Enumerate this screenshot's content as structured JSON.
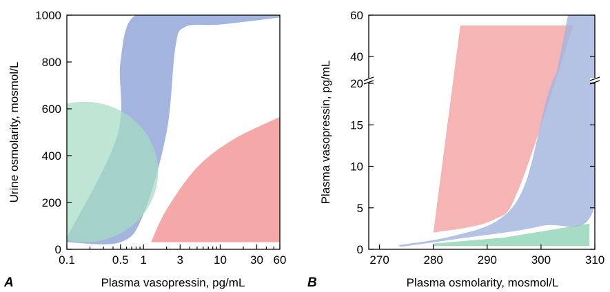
{
  "chart_data": [
    {
      "type": "area",
      "panel_label": "A",
      "xlabel": "Plasma vasopressin, pg/mL",
      "ylabel": "Urine osmolarity, mosmol/L",
      "x_scale": "log",
      "xlim": [
        0.1,
        60
      ],
      "ylim": [
        0,
        1000
      ],
      "x_ticks": [
        0.1,
        0.5,
        1,
        3,
        10,
        30,
        60
      ],
      "x_tick_labels": [
        "0.1",
        "0.5",
        "1",
        "3",
        "10",
        "30",
        "60"
      ],
      "y_ticks": [
        0,
        200,
        400,
        600,
        800,
        1000
      ],
      "y_tick_labels": [
        "0",
        "200",
        "400",
        "600",
        "800",
        "1000"
      ],
      "grid": false,
      "regions": [
        {
          "color": "#a3b4de",
          "upper": [
            [
              0.1,
              50
            ],
            [
              0.45,
              480
            ],
            [
              0.5,
              800
            ],
            [
              0.75,
              995
            ],
            [
              3,
              1000
            ],
            [
              60,
              1000
            ]
          ],
          "lower": [
            [
              0.1,
              30
            ],
            [
              0.5,
              30
            ],
            [
              1,
              150
            ],
            [
              2,
              500
            ],
            [
              2.6,
              860
            ],
            [
              3.5,
              950
            ],
            [
              10,
              960
            ],
            [
              60,
              990
            ]
          ]
        },
        {
          "color": "#a6dcc4",
          "shape": "ellipse",
          "center": [
            0.17,
            330
          ],
          "x_extent": [
            0.1,
            1.55
          ],
          "y_extent": [
            30,
            630
          ]
        },
        {
          "color": "#f5a8a8",
          "boundary": [
            [
              1.25,
              30
            ],
            [
              2,
              170
            ],
            [
              5,
              350
            ],
            [
              15,
              470
            ],
            [
              60,
              565
            ],
            [
              60,
              30
            ]
          ]
        }
      ]
    },
    {
      "type": "area",
      "panel_label": "B",
      "xlabel": "Plasma osmolarity, mosmol/L",
      "ylabel": "Plasma vasopressin, pg/mL",
      "xlim": [
        268,
        310
      ],
      "ylim": [
        0,
        60
      ],
      "y_axis_break": [
        20,
        30
      ],
      "x_ticks": [
        270,
        280,
        290,
        300,
        310
      ],
      "x_tick_labels": [
        "270",
        "280",
        "290",
        "300",
        "310"
      ],
      "y_ticks": [
        0,
        5,
        10,
        15,
        20,
        40,
        60
      ],
      "y_tick_labels": [
        "0",
        "5",
        "10",
        "15",
        "20",
        "40",
        "60"
      ],
      "grid": false,
      "regions": [
        {
          "color": "#a6dcc4",
          "boundary": [
            [
              280,
              0.4
            ],
            [
              309,
              0.4
            ],
            [
              309,
              3.1
            ],
            [
              293,
              1.4
            ],
            [
              280,
              0.7
            ]
          ]
        },
        {
          "color": "#f5a8a8",
          "opacity": 0.85,
          "boundary": [
            [
              280,
              2.0
            ],
            [
              285,
              55
            ],
            [
              306,
              55
            ],
            [
              296,
              7.5
            ],
            [
              291,
              3.5
            ],
            [
              280,
              2.0
            ]
          ]
        },
        {
          "color": "#a3b4de",
          "opacity": 0.82,
          "boundary": [
            [
              273.5,
              0.5
            ],
            [
              283,
              1.5
            ],
            [
              292,
              3.5
            ],
            [
              297,
              7.8
            ],
            [
              301,
              18
            ],
            [
              303,
              33
            ],
            [
              305,
              60
            ],
            [
              310,
              60
            ],
            [
              310,
              5.3
            ],
            [
              300,
              2.8
            ],
            [
              285,
              1.3
            ],
            [
              274,
              0.3
            ]
          ]
        }
      ]
    }
  ]
}
